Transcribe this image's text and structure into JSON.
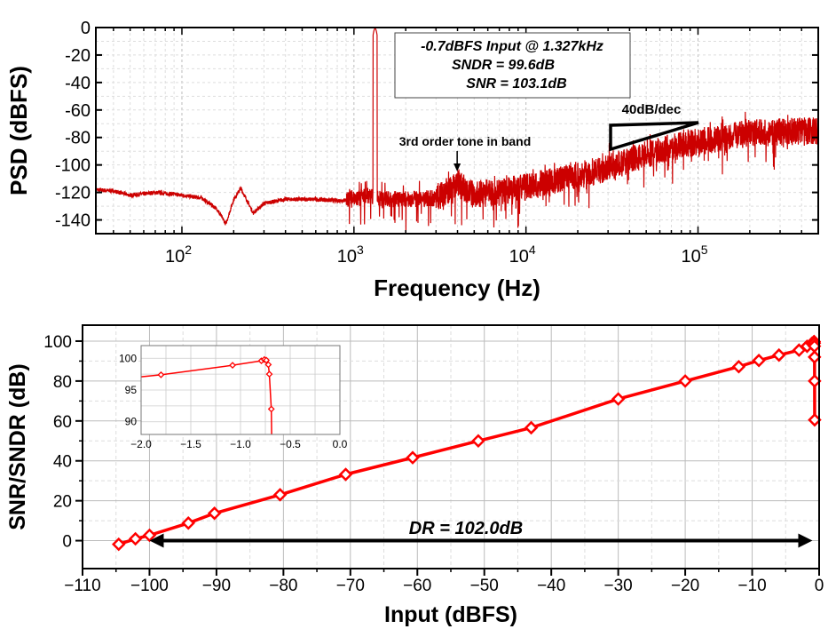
{
  "chart_data": [
    {
      "type": "line",
      "xlabel": "Frequency (Hz)",
      "ylabel": "PSD (dBFS)",
      "xscale": "log",
      "xlim": [
        31.6,
        500000
      ],
      "ylim": [
        -150,
        0
      ],
      "xticks": [
        {
          "base": "10",
          "exp": "2",
          "value": 100
        },
        {
          "base": "10",
          "exp": "3",
          "value": 1000
        },
        {
          "base": "10",
          "exp": "4",
          "value": 10000
        },
        {
          "base": "10",
          "exp": "5",
          "value": 100000
        }
      ],
      "yticks": [
        0,
        -20,
        -40,
        -60,
        -80,
        -100,
        -120,
        -140
      ],
      "grid": true,
      "color": "#cc0000",
      "series": [
        {
          "x": [
            31.6,
            40,
            50,
            60,
            70,
            85,
            100,
            130,
            160,
            180,
            200,
            220,
            260,
            300,
            400,
            600,
            800,
            1000,
            1200,
            1327,
            1450,
            2000,
            3000,
            3981,
            5000,
            7000,
            10000,
            20000,
            30000,
            50000,
            100000,
            200000,
            300000,
            500000
          ],
          "y": [
            -118,
            -119,
            -122,
            -121,
            -120,
            -121,
            -122,
            -124,
            -132,
            -143,
            -125,
            -117,
            -135,
            -128,
            -125,
            -125,
            -126,
            -125,
            -122,
            -0.7,
            -125,
            -125,
            -124,
            -114,
            -121,
            -120,
            -116,
            -108,
            -102,
            -92,
            -83,
            -77,
            -76,
            -75
          ]
        }
      ],
      "annotations": {
        "box_lines": [
          "-0.7dBFS Input @ 1.327kHz",
          "SNDR = 99.6dB",
          "SNR = 103.1dB"
        ],
        "tone_label": "3rd order tone in band",
        "tone_freq": 3981,
        "slope_label": "40dB/dec"
      }
    },
    {
      "type": "line",
      "xlabel": "Input (dBFS)",
      "ylabel": "SNR/SNDR (dB)",
      "xlim": [
        -110,
        0
      ],
      "ylim": [
        -14,
        108
      ],
      "xticks": [
        "-110",
        "-100",
        "-90",
        "-80",
        "-70",
        "-60",
        "-50",
        "-40",
        "-30",
        "-20",
        "-10",
        "0"
      ],
      "yticks": [
        "0",
        "20",
        "40",
        "60",
        "80",
        "100"
      ],
      "grid": true,
      "color": "#ff0000",
      "marker": "diamond-open",
      "series": [
        {
          "x": [
            -104.6,
            -102.1,
            -100,
            -94.2,
            -90.3,
            -80.5,
            -70.7,
            -60.7,
            -50.9,
            -43,
            -30,
            -20,
            -12,
            -9,
            -6,
            -3,
            -1.8,
            -1.08,
            -0.79,
            -0.76,
            -0.74,
            -0.72,
            -0.71,
            -0.69,
            -0.68,
            -0.67
          ],
          "y": [
            -1.8,
            0.9,
            2.7,
            8.8,
            13.7,
            23,
            33.2,
            41.6,
            50,
            56.6,
            71,
            80,
            87.2,
            90.3,
            93,
            95.5,
            97.4,
            98.9,
            99.6,
            99.8,
            99.7,
            99,
            97.5,
            92,
            80,
            60.5
          ]
        }
      ],
      "annotation": {
        "dr_label": "DR = 102.0dB",
        "dr_from": -100,
        "dr_to": -1
      },
      "inset": {
        "xlim": [
          -2,
          0
        ],
        "ylim": [
          88,
          102
        ],
        "xticks": [
          "-2.0",
          "-1.5",
          "-1.0",
          "-0.5",
          "0.0"
        ],
        "yticks": [
          "100",
          "95",
          "90"
        ]
      }
    }
  ]
}
